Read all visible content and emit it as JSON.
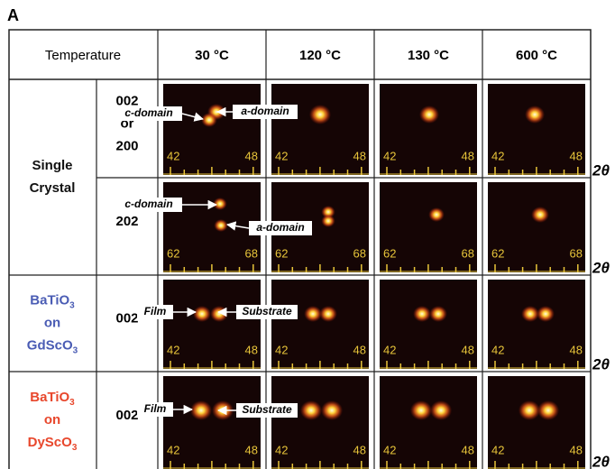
{
  "panel_label": "A",
  "header": {
    "row_label": "Temperature",
    "temperatures": [
      "30 °C",
      "120 °C",
      "130 °C",
      "600 °C"
    ]
  },
  "axis_title": "2θ",
  "groups": [
    {
      "label": [
        {
          "text": "Single"
        },
        {
          "text": "Crystal"
        }
      ],
      "color": "#111111",
      "rows": [
        {
          "reflection": [
            "002",
            "or",
            "200"
          ],
          "axis_labels": [
            "42",
            "48"
          ],
          "annotations": [
            "c-domain",
            "a-domain"
          ]
        },
        {
          "reflection": [
            "202"
          ],
          "axis_labels": [
            "62",
            "68"
          ],
          "annotations": [
            "c-domain",
            "a-domain"
          ]
        }
      ]
    },
    {
      "label": [
        {
          "text": "BaTiO",
          "sub": "3"
        },
        {
          "text": "on"
        },
        {
          "text": "GdScO",
          "sub": "3"
        }
      ],
      "color": "#4a5cb4",
      "rows": [
        {
          "reflection": [
            "002"
          ],
          "axis_labels": [
            "42",
            "48"
          ],
          "annotations": [
            "Film",
            "Substrate"
          ]
        }
      ]
    },
    {
      "label": [
        {
          "text": "BaTiO",
          "sub": "3"
        },
        {
          "text": "on"
        },
        {
          "text": "DyScO",
          "sub": "3"
        }
      ],
      "color": "#e8472c",
      "rows": [
        {
          "reflection": [
            "002"
          ],
          "axis_labels": [
            "42",
            "48"
          ],
          "annotations": [
            "Film",
            "Substrate"
          ]
        }
      ]
    }
  ]
}
